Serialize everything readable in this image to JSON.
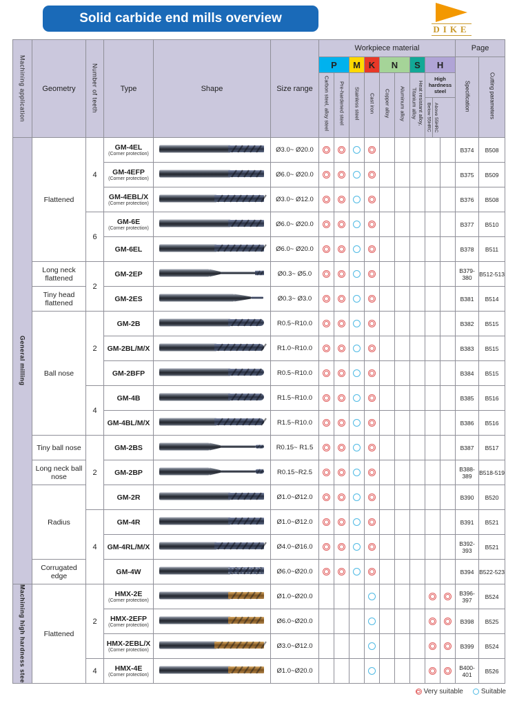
{
  "title": "Solid carbide end mills overview",
  "brand": "DIKE",
  "legend": {
    "very_suitable": "Very suitable",
    "suitable": "Suitable"
  },
  "colors": {
    "title_bg": "#1a6ab8",
    "header_bg": "#cbc8dd",
    "grid": "#8f8f98",
    "app_text": "#1e8e3e",
    "very_suitable": "#e05a5a",
    "suitable": "#4db9e4",
    "P": "#00b2ee",
    "M": "#ffd800",
    "K": "#e83828",
    "N": "#a5d498",
    "S": "#12a897",
    "H": "#b0a4d6",
    "logo": "#f39800",
    "logo_text": "#c9992b"
  },
  "header": {
    "machining_application": "Machining application",
    "geometry": "Geometry",
    "number_of_teeth": "Number of teeth",
    "type": "Type",
    "shape": "Shape",
    "size_range": "Size range",
    "workpiece_material": "Workpiece material",
    "page": "Page",
    "material_groups": [
      {
        "code": "P",
        "span": 2
      },
      {
        "code": "M",
        "span": 1
      },
      {
        "code": "K",
        "span": 1
      },
      {
        "code": "N",
        "span": 2
      },
      {
        "code": "S",
        "span": 1
      },
      {
        "code": "H",
        "span": 2,
        "sub_label": "High hardness steel"
      }
    ],
    "material_columns": [
      {
        "group": "P",
        "label": "Carbon steel, alloy steel"
      },
      {
        "group": "P",
        "label": "Pre-hardened steel"
      },
      {
        "group": "M",
        "label": "Stainless steel"
      },
      {
        "group": "K",
        "label": "Cast iron"
      },
      {
        "group": "N",
        "label": "Copper alloy"
      },
      {
        "group": "N",
        "label": "Aluminum alloy"
      },
      {
        "group": "S",
        "label": "Heat resistant alloy, Titanium alloy"
      },
      {
        "group": "H",
        "label": "Below 55HRC"
      },
      {
        "group": "H",
        "label": "Above 55HRC"
      }
    ],
    "page_columns": [
      "Specification",
      "Cutting parameters"
    ]
  },
  "rows": [
    {
      "app": {
        "label": "General milling",
        "span": 18
      },
      "geo": {
        "label": "Flattened",
        "span": 5
      },
      "teeth": {
        "label": "4",
        "span": 3
      },
      "type": "GM-4EL",
      "note": "(Corner protection)",
      "shape": "flat",
      "size": "Ø3.0~ Ø20.0",
      "marks": [
        "VS",
        "VS",
        "S",
        "VS",
        "",
        "",
        "",
        "",
        ""
      ],
      "spec": "B374",
      "cut": "B508"
    },
    {
      "type": "GM-4EFP",
      "note": "(Corner protection)",
      "shape": "flat",
      "size": "Ø6.0~ Ø20.0",
      "marks": [
        "VS",
        "VS",
        "S",
        "VS",
        "",
        "",
        "",
        "",
        ""
      ],
      "spec": "B375",
      "cut": "B509"
    },
    {
      "type": "GM-4EBL/X",
      "note": "(Corner protection)",
      "shape": "flat-long",
      "size": "Ø3.0~ Ø12.0",
      "marks": [
        "VS",
        "VS",
        "S",
        "VS",
        "",
        "",
        "",
        "",
        ""
      ],
      "spec": "B376",
      "cut": "B508"
    },
    {
      "teeth": {
        "label": "6",
        "span": 2
      },
      "type": "GM-6E",
      "note": "(Corner protection)",
      "shape": "flat",
      "size": "Ø6.0~ Ø20.0",
      "marks": [
        "VS",
        "VS",
        "S",
        "VS",
        "",
        "",
        "",
        "",
        ""
      ],
      "spec": "B377",
      "cut": "B510"
    },
    {
      "type": "GM-6EL",
      "note": "",
      "shape": "flat-long",
      "size": "Ø6.0~ Ø20.0",
      "marks": [
        "VS",
        "VS",
        "S",
        "VS",
        "",
        "",
        "",
        "",
        ""
      ],
      "spec": "B378",
      "cut": "B511"
    },
    {
      "geo": {
        "label": "Long neck flattened",
        "span": 1
      },
      "teeth": {
        "label": "2",
        "span": 2
      },
      "type": "GM-2EP",
      "note": "",
      "shape": "longneck",
      "size": "Ø0.3~ Ø5.0",
      "marks": [
        "VS",
        "VS",
        "S",
        "VS",
        "",
        "",
        "",
        "",
        ""
      ],
      "spec": "B379-380",
      "cut": "B512-513"
    },
    {
      "geo": {
        "label": "Tiny head flattened",
        "span": 1
      },
      "type": "GM-2ES",
      "note": "",
      "shape": "tinyhead",
      "size": "Ø0.3~ Ø3.0",
      "marks": [
        "VS",
        "VS",
        "S",
        "VS",
        "",
        "",
        "",
        "",
        ""
      ],
      "spec": "B381",
      "cut": "B514"
    },
    {
      "geo": {
        "label": "Ball nose",
        "span": 5
      },
      "teeth": {
        "label": "2",
        "span": 3
      },
      "type": "GM-2B",
      "note": "",
      "shape": "ball",
      "size": "R0.5~R10.0",
      "marks": [
        "VS",
        "VS",
        "S",
        "VS",
        "",
        "",
        "",
        "",
        ""
      ],
      "spec": "B382",
      "cut": "B515"
    },
    {
      "type": "GM-2BL/M/X",
      "note": "",
      "shape": "ball-long",
      "size": "R1.0~R10.0",
      "marks": [
        "VS",
        "VS",
        "S",
        "VS",
        "",
        "",
        "",
        "",
        ""
      ],
      "spec": "B383",
      "cut": "B515"
    },
    {
      "type": "GM-2BFP",
      "note": "",
      "shape": "ball",
      "size": "R0.5~R10.0",
      "marks": [
        "VS",
        "VS",
        "S",
        "VS",
        "",
        "",
        "",
        "",
        ""
      ],
      "spec": "B384",
      "cut": "B515"
    },
    {
      "teeth": {
        "label": "4",
        "span": 2
      },
      "type": "GM-4B",
      "note": "",
      "shape": "ball",
      "size": "R1.5~R10.0",
      "marks": [
        "VS",
        "VS",
        "S",
        "VS",
        "",
        "",
        "",
        "",
        ""
      ],
      "spec": "B385",
      "cut": "B516"
    },
    {
      "type": "GM-4BL/M/X",
      "note": "",
      "shape": "ball-long",
      "size": "R1.5~R10.0",
      "marks": [
        "VS",
        "VS",
        "S",
        "VS",
        "",
        "",
        "",
        "",
        ""
      ],
      "spec": "B386",
      "cut": "B516"
    },
    {
      "geo": {
        "label": "Tiny ball nose",
        "span": 1
      },
      "teeth": {
        "label": "2",
        "span": 3
      },
      "type": "GM-2BS",
      "note": "",
      "shape": "tinyball",
      "size": "R0.15~ R1.5",
      "marks": [
        "VS",
        "VS",
        "S",
        "VS",
        "",
        "",
        "",
        "",
        ""
      ],
      "spec": "B387",
      "cut": "B517"
    },
    {
      "geo": {
        "label": "Long neck ball nose",
        "span": 1
      },
      "type": "GM-2BP",
      "note": "",
      "shape": "longneck-ball",
      "size": "R0.15~R2.5",
      "marks": [
        "VS",
        "VS",
        "S",
        "VS",
        "",
        "",
        "",
        "",
        ""
      ],
      "spec": "B388-389",
      "cut": "B518-519"
    },
    {
      "geo": {
        "label": "Radius",
        "span": 3
      },
      "type": "GM-2R",
      "note": "",
      "shape": "flat",
      "size": "Ø1.0~Ø12.0",
      "marks": [
        "VS",
        "VS",
        "S",
        "VS",
        "",
        "",
        "",
        "",
        ""
      ],
      "spec": "B390",
      "cut": "B520"
    },
    {
      "teeth": {
        "label": "4",
        "span": 3
      },
      "type": "GM-4R",
      "note": "",
      "shape": "flat",
      "size": "Ø1.0~Ø12.0",
      "marks": [
        "VS",
        "VS",
        "S",
        "VS",
        "",
        "",
        "",
        "",
        ""
      ],
      "spec": "B391",
      "cut": "B521"
    },
    {
      "type": "GM-4RL/M/X",
      "note": "",
      "shape": "flat-long",
      "size": "Ø4.0~Ø16.0",
      "marks": [
        "VS",
        "VS",
        "S",
        "VS",
        "",
        "",
        "",
        "",
        ""
      ],
      "spec": "B392-393",
      "cut": "B521"
    },
    {
      "geo": {
        "label": "Corrugated edge",
        "span": 1
      },
      "type": "GM-4W",
      "note": "",
      "shape": "corrugated",
      "size": "Ø6.0~Ø20.0",
      "marks": [
        "VS",
        "VS",
        "S",
        "VS",
        "",
        "",
        "",
        "",
        ""
      ],
      "spec": "B394",
      "cut": "B522-523"
    },
    {
      "app": {
        "label": "Machining high hardness steel",
        "span": 4
      },
      "geo": {
        "label": "Flattened",
        "span": 4
      },
      "teeth": {
        "label": "2",
        "span": 3
      },
      "type": "HMX-2E",
      "note": "(Corner protection)",
      "shape": "hmx-flat",
      "size": "Ø1.0~Ø20.0",
      "marks": [
        "",
        "",
        "",
        "S",
        "",
        "",
        "",
        "VS",
        "VS"
      ],
      "spec": "B396-397",
      "cut": "B524"
    },
    {
      "type": "HMX-2EFP",
      "note": "(Corner protection)",
      "shape": "hmx-flat",
      "size": "Ø6.0~Ø20.0",
      "marks": [
        "",
        "",
        "",
        "S",
        "",
        "",
        "",
        "VS",
        "VS"
      ],
      "spec": "B398",
      "cut": "B525"
    },
    {
      "type": "HMX-2EBL/X",
      "note": "(Corner protection)",
      "shape": "hmx-long",
      "size": "Ø3.0~Ø12.0",
      "marks": [
        "",
        "",
        "",
        "S",
        "",
        "",
        "",
        "VS",
        "VS"
      ],
      "spec": "B399",
      "cut": "B524"
    },
    {
      "teeth": {
        "label": "4",
        "span": 1
      },
      "type": "HMX-4E",
      "note": "(Corner protection)",
      "shape": "hmx-flat",
      "size": "Ø1.0~Ø20.0",
      "marks": [
        "",
        "",
        "",
        "S",
        "",
        "",
        "",
        "VS",
        "VS"
      ],
      "spec": "B400-401",
      "cut": "B526"
    }
  ]
}
